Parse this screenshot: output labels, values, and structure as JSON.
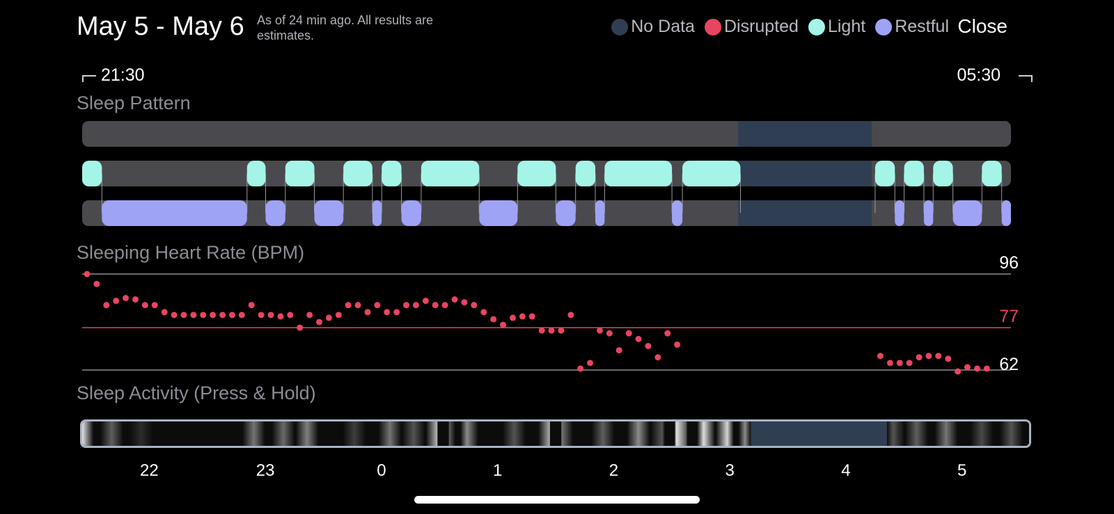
{
  "header": {
    "title": "May 5 - May 6",
    "subtitle": "As of 24 min ago. All results are estimates.",
    "close_label": "Close"
  },
  "legend": [
    {
      "label": "No Data",
      "color": "#2f3e52"
    },
    {
      "label": "Disrupted",
      "color": "#e8455f"
    },
    {
      "label": "Light",
      "color": "#a4f5e8"
    },
    {
      "label": "Restful",
      "color": "#9ea3f5"
    }
  ],
  "time_range": {
    "start": "21:30",
    "end": "05:30"
  },
  "sections": {
    "sleep_pattern": "Sleep Pattern",
    "heart_rate": "Sleeping Heart Rate (BPM)",
    "activity": "Sleep Activity (Press & Hold)"
  },
  "colors": {
    "track": "#4a4a4e",
    "no_data": "#2f3e52",
    "light": "#a4f5e8",
    "restful": "#9ea3f5",
    "heart": "#e8455f",
    "grid": "#8e8e93"
  },
  "chart_data": [
    {
      "type": "bar",
      "title": "Sleep Pattern",
      "x_unit": "hours since 21:30",
      "xlim": [
        0,
        8.0
      ],
      "no_data": [
        [
          5.65,
          6.8
        ]
      ],
      "light": [
        [
          0.0,
          0.17
        ],
        [
          1.42,
          1.58
        ],
        [
          1.75,
          2.0
        ],
        [
          2.25,
          2.5
        ],
        [
          2.58,
          2.75
        ],
        [
          2.92,
          3.42
        ],
        [
          3.75,
          4.08
        ],
        [
          4.25,
          4.42
        ],
        [
          4.5,
          5.08
        ],
        [
          5.17,
          5.67
        ],
        [
          6.83,
          7.0
        ],
        [
          7.08,
          7.25
        ],
        [
          7.33,
          7.5
        ],
        [
          7.75,
          7.92
        ]
      ],
      "restful": [
        [
          0.17,
          1.42
        ],
        [
          1.58,
          1.75
        ],
        [
          2.0,
          2.25
        ],
        [
          2.5,
          2.58
        ],
        [
          2.75,
          2.92
        ],
        [
          3.42,
          3.75
        ],
        [
          4.08,
          4.25
        ],
        [
          4.42,
          4.5
        ],
        [
          5.08,
          5.17
        ],
        [
          7.0,
          7.08
        ],
        [
          7.25,
          7.33
        ],
        [
          7.5,
          7.75
        ],
        [
          7.92,
          8.0
        ]
      ]
    },
    {
      "type": "scatter",
      "title": "Sleeping Heart Rate (BPM)",
      "x_unit": "hours since 21:30",
      "ylim": [
        62,
        96
      ],
      "reference_lines": {
        "max": 96,
        "avg": 77,
        "min": 62
      },
      "y_labels": {
        "max": "96",
        "avg": "77",
        "min": "62"
      },
      "series": [
        {
          "x": [
            0.0,
            0.083,
            0.167,
            0.25,
            0.333,
            0.417,
            0.5,
            0.583,
            0.667,
            0.75,
            0.833,
            0.917,
            1.0,
            1.083,
            1.167,
            1.25,
            1.333,
            1.417,
            1.5,
            1.583,
            1.667,
            1.75,
            1.833,
            1.917,
            2.0,
            2.083,
            2.167,
            2.25,
            2.333,
            2.417,
            2.5,
            2.583,
            2.667,
            2.75,
            2.833,
            2.917,
            3.0,
            3.083,
            3.167,
            3.25,
            3.333,
            3.417,
            3.5,
            3.583,
            3.667,
            3.75,
            3.833,
            3.917,
            4.0,
            4.083,
            4.167,
            4.25,
            4.333,
            4.417,
            4.5,
            4.583,
            4.667,
            4.75,
            4.833,
            4.917,
            5.0,
            5.083,
            6.833,
            6.917,
            7.0,
            7.083,
            7.167,
            7.25,
            7.333,
            7.417,
            7.5,
            7.583,
            7.667,
            7.75
          ],
          "y": [
            96,
            92.5,
            85,
            86.5,
            87.5,
            87,
            85,
            85,
            82.5,
            81.5,
            81.5,
            81.5,
            81.5,
            81.5,
            81.5,
            81.5,
            81.5,
            85,
            81.5,
            81.5,
            81,
            81.5,
            77,
            81.5,
            79,
            80.5,
            81.5,
            85,
            85,
            82.5,
            85,
            82.5,
            82.5,
            85,
            85,
            86.5,
            85,
            85,
            87,
            86,
            85,
            82.5,
            80,
            78,
            80.5,
            81,
            81,
            76,
            76,
            76,
            81.5,
            62.5,
            64.5,
            76,
            75,
            69,
            75,
            73,
            70.5,
            66.5,
            75,
            71,
            67,
            64.5,
            64.5,
            64.5,
            66.5,
            67,
            67,
            66,
            61.5,
            63,
            62.5,
            62.5
          ]
        }
      ]
    },
    {
      "type": "heatmap",
      "title": "Sleep Activity (Press & Hold)",
      "x_unit": "hours since 21:30",
      "xlim": [
        0,
        8.0
      ],
      "no_data": [
        [
          5.65,
          6.8
        ]
      ],
      "activity": [
        {
          "x": 0.0,
          "level": 0.95
        },
        {
          "x": 0.25,
          "level": 0.35
        },
        {
          "x": 0.5,
          "level": 0.12
        },
        {
          "x": 1.45,
          "level": 0.45
        },
        {
          "x": 1.7,
          "level": 0.4
        },
        {
          "x": 1.9,
          "level": 0.5
        },
        {
          "x": 2.3,
          "level": 0.2
        },
        {
          "x": 2.6,
          "level": 0.45
        },
        {
          "x": 2.8,
          "level": 0.3
        },
        {
          "x": 3.0,
          "level": 0.75
        },
        {
          "x": 3.1,
          "level": 0.35
        },
        {
          "x": 3.25,
          "level": 0.55
        },
        {
          "x": 3.65,
          "level": 0.3
        },
        {
          "x": 3.95,
          "level": 0.7
        },
        {
          "x": 4.05,
          "level": 0.45
        },
        {
          "x": 4.4,
          "level": 0.35
        },
        {
          "x": 4.7,
          "level": 0.55
        },
        {
          "x": 4.9,
          "level": 0.3
        },
        {
          "x": 5.02,
          "level": 0.95
        },
        {
          "x": 5.1,
          "level": 0.35
        },
        {
          "x": 5.25,
          "level": 0.92
        },
        {
          "x": 5.45,
          "level": 0.88
        },
        {
          "x": 5.6,
          "level": 0.55
        },
        {
          "x": 6.85,
          "level": 0.3
        },
        {
          "x": 7.05,
          "level": 0.35
        },
        {
          "x": 7.3,
          "level": 0.45
        },
        {
          "x": 7.6,
          "level": 0.25
        },
        {
          "x": 7.85,
          "level": 0.3
        }
      ]
    }
  ],
  "axis": {
    "ticks": [
      {
        "label": "22",
        "hour": 0.5
      },
      {
        "label": "23",
        "hour": 1.5
      },
      {
        "label": "0",
        "hour": 2.5
      },
      {
        "label": "1",
        "hour": 3.5
      },
      {
        "label": "2",
        "hour": 4.5
      },
      {
        "label": "3",
        "hour": 5.5
      },
      {
        "label": "4",
        "hour": 6.5
      },
      {
        "label": "5",
        "hour": 7.5
      }
    ]
  }
}
